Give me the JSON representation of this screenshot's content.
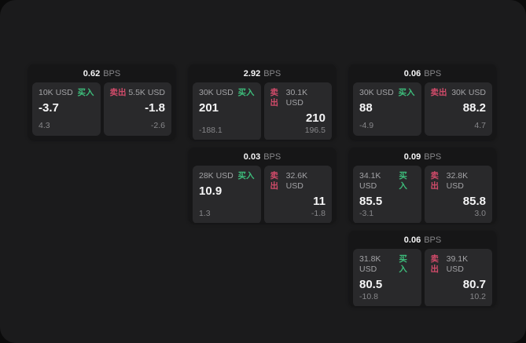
{
  "theme": {
    "page_bg": "#0b0b0b",
    "window_bg": "#1b1b1c",
    "card_bg": "#161617",
    "tile_bg": "#29292b",
    "text_primary": "#f5f5f6",
    "text_secondary": "#a3a3a6",
    "text_dim": "#87878a",
    "buy_color": "#3dbd7b",
    "sell_color": "#d14b6a"
  },
  "labels": {
    "bps_unit": "BPS",
    "buy": "买入",
    "sell": "卖出"
  },
  "cards": [
    {
      "col": 1,
      "row": 1,
      "bps": "0.62",
      "buy": {
        "size": "10K USD",
        "price": "-3.7",
        "delta": "4.3"
      },
      "sell": {
        "size": "5.5K USD",
        "price": "-1.8",
        "delta": "-2.6"
      }
    },
    {
      "col": 2,
      "row": 1,
      "bps": "2.92",
      "buy": {
        "size": "30K USD",
        "price": "201",
        "delta": "-188.1"
      },
      "sell": {
        "size": "30.1K USD",
        "price": "210",
        "delta": "196.5"
      }
    },
    {
      "col": 3,
      "row": 1,
      "bps": "0.06",
      "buy": {
        "size": "30K USD",
        "price": "88",
        "delta": "-4.9"
      },
      "sell": {
        "size": "30K USD",
        "price": "88.2",
        "delta": "4.7"
      }
    },
    {
      "col": 2,
      "row": 2,
      "bps": "0.03",
      "buy": {
        "size": "28K USD",
        "price": "10.9",
        "delta": "1.3"
      },
      "sell": {
        "size": "32.6K USD",
        "price": "11",
        "delta": "-1.8"
      }
    },
    {
      "col": 3,
      "row": 2,
      "bps": "0.09",
      "buy": {
        "size": "34.1K USD",
        "price": "85.5",
        "delta": "-3.1"
      },
      "sell": {
        "size": "32.8K USD",
        "price": "85.8",
        "delta": "3.0"
      }
    },
    {
      "col": 3,
      "row": 3,
      "bps": "0.06",
      "buy": {
        "size": "31.8K USD",
        "price": "80.5",
        "delta": "-10.8"
      },
      "sell": {
        "size": "39.1K USD",
        "price": "80.7",
        "delta": "10.2"
      }
    }
  ]
}
